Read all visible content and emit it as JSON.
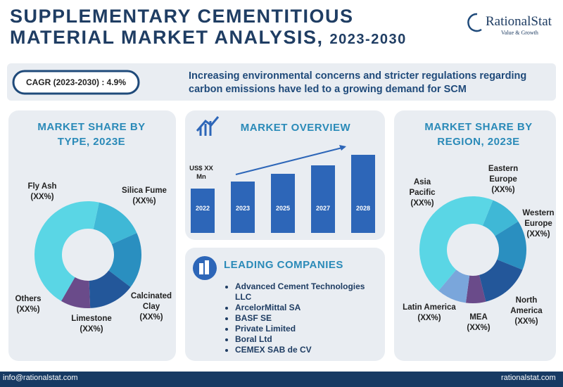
{
  "header": {
    "title_line1": "SUPPLEMENTARY CEMENTITIOUS",
    "title_line2": "MATERIAL MARKET ANALYSIS,",
    "title_years": "2023-2030",
    "logo_name": "RationalStat",
    "logo_tagline": "Value & Growth"
  },
  "highlight": {
    "cagr": "CAGR (2023-2030) : 4.9%",
    "statement": "Increasing environmental concerns and stricter regulations regarding carbon emissions have led to a growing demand for SCM"
  },
  "chart_data": [
    {
      "type": "donut",
      "title": "MARKET SHARE BY TYPE, 2023E",
      "categories": [
        "Silica Fume",
        "Calcinated Clay",
        "Limestone",
        "Others",
        "Fly Ash"
      ],
      "category_notes": [
        "(XX%)",
        "(XX%)",
        "(XX%)",
        "(XX%)",
        "(XX%)"
      ],
      "values": [
        15,
        17,
        14,
        9,
        45
      ],
      "colors": [
        "#3fb8d6",
        "#2a8fc0",
        "#23579a",
        "#6a4b8a",
        "#5ad6e5"
      ]
    },
    {
      "type": "bar",
      "title": "MARKET OVERVIEW",
      "y_label": "US$ XX Mn",
      "categories": [
        "2022",
        "2023",
        "2025",
        "2027",
        "2028"
      ],
      "values": [
        63,
        73,
        84,
        96,
        111
      ],
      "ylim": [
        0,
        120
      ],
      "color": "#2d66b8"
    },
    {
      "type": "donut",
      "title": "MARKET SHARE BY REGION, 2023E",
      "categories": [
        "Eastern Europe",
        "Western Europe",
        "North America",
        "MEA",
        "Latin America",
        "Asia Pacific"
      ],
      "category_notes": [
        "(XX%)",
        "(XX%)",
        "(XX%)",
        "(XX%)",
        "(XX%)",
        "(XX%)"
      ],
      "values": [
        10,
        15,
        15,
        6,
        9,
        45
      ],
      "colors": [
        "#3fb8d6",
        "#2a8fc0",
        "#23579a",
        "#6a4b8a",
        "#7aa6db",
        "#5ad6e5"
      ]
    }
  ],
  "companies": {
    "title": "LEADING COMPANIES",
    "items": [
      "Advanced Cement Technologies LLC",
      "ArcelorMittal SA",
      "BASF SE",
      "Private Limited",
      "Boral Ltd",
      "CEMEX SAB de CV"
    ]
  },
  "footer": {
    "email": "info@rationalstat.com",
    "website": "rationalstat.com"
  }
}
